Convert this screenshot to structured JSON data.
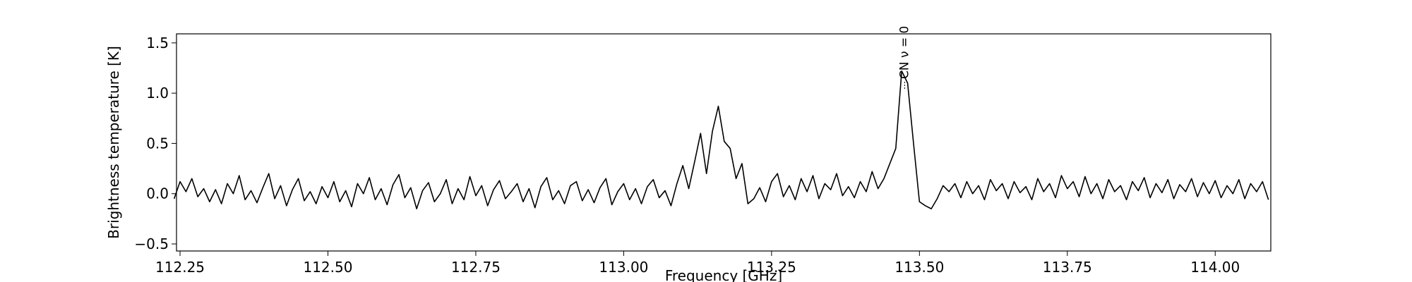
{
  "chart_data": {
    "type": "line",
    "x_label": "Frequency [GHz]",
    "y_label": "Brightness temperature [K]",
    "x": [
      112.24,
      112.25,
      112.26,
      112.27,
      112.28,
      112.29,
      112.3,
      112.31,
      112.32,
      112.33,
      112.34,
      112.35,
      112.36,
      112.37,
      112.38,
      112.39,
      112.4,
      112.41,
      112.42,
      112.43,
      112.44,
      112.45,
      112.46,
      112.47,
      112.48,
      112.49,
      112.5,
      112.51,
      112.52,
      112.53,
      112.54,
      112.55,
      112.56,
      112.57,
      112.58,
      112.59,
      112.6,
      112.61,
      112.62,
      112.63,
      112.64,
      112.65,
      112.66,
      112.67,
      112.68,
      112.69,
      112.7,
      112.71,
      112.72,
      112.73,
      112.74,
      112.75,
      112.76,
      112.77,
      112.78,
      112.79,
      112.8,
      112.81,
      112.82,
      112.83,
      112.84,
      112.85,
      112.86,
      112.87,
      112.88,
      112.89,
      112.9,
      112.91,
      112.92,
      112.93,
      112.94,
      112.95,
      112.96,
      112.97,
      112.98,
      112.99,
      113.0,
      113.01,
      113.02,
      113.03,
      113.04,
      113.05,
      113.06,
      113.07,
      113.08,
      113.09,
      113.1,
      113.11,
      113.12,
      113.13,
      113.14,
      113.15,
      113.16,
      113.17,
      113.18,
      113.19,
      113.2,
      113.21,
      113.22,
      113.23,
      113.24,
      113.25,
      113.26,
      113.27,
      113.28,
      113.29,
      113.3,
      113.31,
      113.32,
      113.33,
      113.34,
      113.35,
      113.36,
      113.37,
      113.38,
      113.39,
      113.4,
      113.41,
      113.42,
      113.43,
      113.44,
      113.45,
      113.46,
      113.47,
      113.48,
      113.49,
      113.5,
      113.51,
      113.52,
      113.53,
      113.54,
      113.55,
      113.56,
      113.57,
      113.58,
      113.59,
      113.6,
      113.61,
      113.62,
      113.63,
      113.64,
      113.65,
      113.66,
      113.67,
      113.68,
      113.69,
      113.7,
      113.71,
      113.72,
      113.73,
      113.74,
      113.75,
      113.76,
      113.77,
      113.78,
      113.79,
      113.8,
      113.81,
      113.82,
      113.83,
      113.84,
      113.85,
      113.86,
      113.87,
      113.88,
      113.89,
      113.9,
      113.91,
      113.92,
      113.93,
      113.94,
      113.95,
      113.96,
      113.97,
      113.98,
      113.99,
      114.0,
      114.01,
      114.02,
      114.03,
      114.04,
      114.05,
      114.06,
      114.07,
      114.08,
      114.09
    ],
    "values": [
      -0.05,
      0.12,
      0.02,
      0.15,
      -0.03,
      0.05,
      -0.08,
      0.04,
      -0.1,
      0.1,
      0.0,
      0.18,
      -0.06,
      0.03,
      -0.09,
      0.06,
      0.2,
      -0.05,
      0.08,
      -0.12,
      0.04,
      0.15,
      -0.07,
      0.02,
      -0.1,
      0.07,
      -0.04,
      0.12,
      -0.08,
      0.03,
      -0.13,
      0.1,
      0.0,
      0.16,
      -0.06,
      0.05,
      -0.11,
      0.09,
      0.19,
      -0.04,
      0.06,
      -0.15,
      0.03,
      0.11,
      -0.08,
      0.0,
      0.14,
      -0.1,
      0.05,
      -0.06,
      0.17,
      -0.02,
      0.08,
      -0.12,
      0.04,
      0.13,
      -0.05,
      0.02,
      0.1,
      -0.08,
      0.05,
      -0.14,
      0.07,
      0.16,
      -0.06,
      0.03,
      -0.1,
      0.08,
      0.12,
      -0.07,
      0.04,
      -0.09,
      0.06,
      0.15,
      -0.11,
      0.02,
      0.1,
      -0.06,
      0.05,
      -0.1,
      0.07,
      0.14,
      -0.04,
      0.03,
      -0.12,
      0.1,
      0.28,
      0.05,
      0.32,
      0.6,
      0.2,
      0.62,
      0.87,
      0.52,
      0.45,
      0.15,
      0.3,
      -0.1,
      -0.05,
      0.06,
      -0.08,
      0.12,
      0.2,
      -0.03,
      0.08,
      -0.06,
      0.15,
      0.02,
      0.18,
      -0.05,
      0.1,
      0.04,
      0.2,
      -0.02,
      0.07,
      -0.04,
      0.12,
      0.02,
      0.22,
      0.05,
      0.15,
      0.3,
      0.45,
      1.22,
      1.1,
      0.5,
      -0.08,
      -0.12,
      -0.15,
      -0.05,
      0.08,
      0.02,
      0.1,
      -0.04,
      0.12,
      0.0,
      0.08,
      -0.06,
      0.14,
      0.03,
      0.1,
      -0.05,
      0.12,
      0.01,
      0.07,
      -0.06,
      0.15,
      0.02,
      0.1,
      -0.04,
      0.18,
      0.05,
      0.12,
      -0.03,
      0.17,
      0.0,
      0.1,
      -0.05,
      0.14,
      0.02,
      0.08,
      -0.06,
      0.12,
      0.03,
      0.16,
      -0.04,
      0.1,
      0.01,
      0.14,
      -0.05,
      0.09,
      0.02,
      0.15,
      -0.03,
      0.11,
      0.0,
      0.13,
      -0.04,
      0.08,
      0.0,
      0.14,
      -0.05,
      0.1,
      0.02,
      0.12,
      -0.06
    ],
    "color": "#000000",
    "xlim": [
      112.244,
      114.094
    ],
    "ylim": [
      -0.57,
      1.59
    ],
    "xticks": [
      112.25,
      {
        "value": 112.5,
        "label": "112.50"
      },
      112.75,
      {
        "value": 113.0,
        "label": "113.00"
      },
      113.25,
      {
        "value": 113.5,
        "label": "113.50"
      },
      113.75,
      {
        "value": 114.0,
        "label": "114.00"
      }
    ],
    "yticks": [
      {
        "value": -0.5,
        "label": "−0.5"
      },
      {
        "value": 0,
        "label": "0.0"
      },
      0.5,
      {
        "value": 1,
        "label": "1.0"
      },
      1.5
    ],
    "annotation": {
      "text": "CN ν = 0",
      "x": 113.475
    }
  }
}
